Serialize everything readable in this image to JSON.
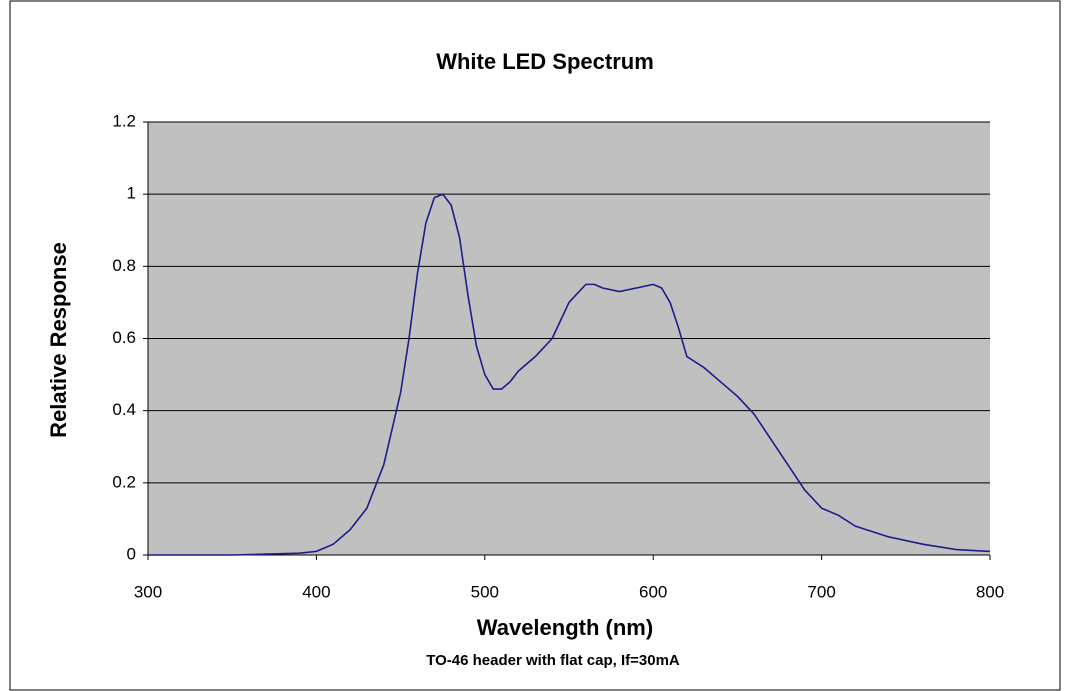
{
  "chart_data": {
    "type": "line",
    "title": "White LED Spectrum",
    "x_label": "Wavelength (nm)",
    "y_label": "Relative Response",
    "subtitle": "TO-46 header with flat cap, If=30mA",
    "x": [
      300,
      350,
      390,
      400,
      410,
      420,
      430,
      440,
      450,
      455,
      460,
      465,
      470,
      475,
      480,
      485,
      490,
      495,
      500,
      505,
      510,
      515,
      520,
      530,
      540,
      550,
      560,
      565,
      570,
      580,
      590,
      600,
      605,
      610,
      615,
      620,
      630,
      640,
      650,
      660,
      670,
      680,
      690,
      700,
      710,
      720,
      740,
      760,
      780,
      800
    ],
    "values": [
      0,
      0,
      0.005,
      0.01,
      0.03,
      0.07,
      0.13,
      0.25,
      0.45,
      0.6,
      0.78,
      0.92,
      0.99,
      1.0,
      0.97,
      0.88,
      0.72,
      0.58,
      0.5,
      0.46,
      0.46,
      0.48,
      0.51,
      0.55,
      0.6,
      0.7,
      0.75,
      0.75,
      0.74,
      0.73,
      0.74,
      0.75,
      0.74,
      0.7,
      0.63,
      0.55,
      0.52,
      0.48,
      0.44,
      0.39,
      0.32,
      0.25,
      0.18,
      0.13,
      0.11,
      0.08,
      0.05,
      0.03,
      0.015,
      0.01
    ],
    "color": "#1c1c8a",
    "xlim": [
      300,
      800
    ],
    "xticks": [
      300,
      400,
      500,
      600,
      700,
      800
    ],
    "ylim": [
      0,
      1.2
    ],
    "yticks": [
      0,
      0.2,
      0.4,
      0.6,
      0.8,
      1,
      1.2
    ],
    "grid": true
  }
}
